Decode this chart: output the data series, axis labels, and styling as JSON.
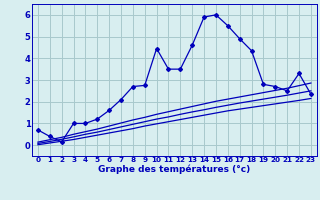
{
  "xlabel": "Graphe des températures (°c)",
  "background_color": "#d8eef0",
  "grid_color": "#a8c8cc",
  "line_color": "#0000bb",
  "x_values": [
    0,
    1,
    2,
    3,
    4,
    5,
    6,
    7,
    8,
    9,
    10,
    11,
    12,
    13,
    14,
    15,
    16,
    17,
    18,
    19,
    20,
    21,
    22,
    23
  ],
  "main_y": [
    0.7,
    0.4,
    0.15,
    1.0,
    1.0,
    1.2,
    1.6,
    2.1,
    2.7,
    2.75,
    4.45,
    3.5,
    3.5,
    4.6,
    5.9,
    6.0,
    5.5,
    4.9,
    4.35,
    2.8,
    2.7,
    2.5,
    3.3,
    2.35
  ],
  "trend1_y": [
    0.02,
    0.1,
    0.18,
    0.26,
    0.36,
    0.46,
    0.56,
    0.66,
    0.76,
    0.88,
    0.98,
    1.08,
    1.18,
    1.28,
    1.38,
    1.48,
    1.58,
    1.66,
    1.74,
    1.82,
    1.9,
    1.98,
    2.06,
    2.15
  ],
  "trend2_y": [
    0.08,
    0.17,
    0.27,
    0.38,
    0.5,
    0.6,
    0.72,
    0.84,
    0.96,
    1.08,
    1.2,
    1.3,
    1.42,
    1.53,
    1.63,
    1.74,
    1.84,
    1.94,
    2.03,
    2.12,
    2.21,
    2.3,
    2.4,
    2.5
  ],
  "trend3_y": [
    0.14,
    0.25,
    0.36,
    0.5,
    0.62,
    0.74,
    0.88,
    1.02,
    1.16,
    1.28,
    1.42,
    1.54,
    1.66,
    1.78,
    1.9,
    2.02,
    2.12,
    2.22,
    2.32,
    2.42,
    2.52,
    2.62,
    2.74,
    2.86
  ],
  "ylim": [
    -0.5,
    6.5
  ],
  "xlim": [
    -0.5,
    23.5
  ],
  "yticks": [
    0,
    1,
    2,
    3,
    4,
    5,
    6
  ],
  "xticks": [
    0,
    1,
    2,
    3,
    4,
    5,
    6,
    7,
    8,
    9,
    10,
    11,
    12,
    13,
    14,
    15,
    16,
    17,
    18,
    19,
    20,
    21,
    22,
    23
  ],
  "xlabel_fontsize": 6.5,
  "tick_fontsize": 5.2,
  "ytick_fontsize": 6.0
}
